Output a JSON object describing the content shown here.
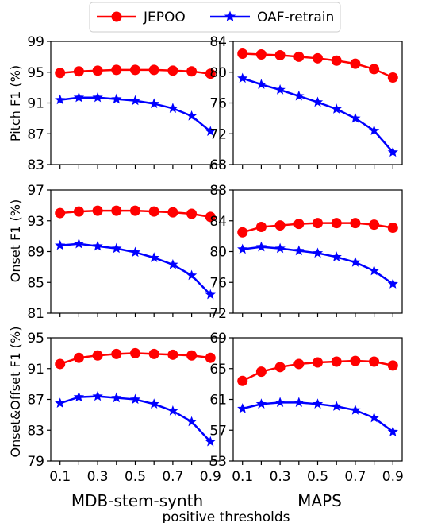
{
  "legend": {
    "items": [
      {
        "label": "JEPOO",
        "color": "#ff0000",
        "marker": "circle"
      },
      {
        "label": "OAF-retrain",
        "color": "#0000ff",
        "marker": "star"
      }
    ]
  },
  "column_titles": [
    "MDB-stem-synth",
    "MAPS"
  ],
  "row_labels": [
    "Pitch F1 (%)",
    "Onset F1 (%)",
    "Onset&Offset F1 (%)"
  ],
  "x_axis_label": "positive thresholds",
  "colors": {
    "jepoo": "#ff0000",
    "oaf": "#0000ff"
  },
  "chart_data": [
    {
      "type": "line",
      "row": 0,
      "col": 0,
      "x": [
        0.1,
        0.2,
        0.3,
        0.4,
        0.5,
        0.6,
        0.7,
        0.8,
        0.9
      ],
      "xticks": [
        "0.1",
        "0.3",
        "0.5",
        "0.7",
        "0.9"
      ],
      "ylim": [
        83,
        99
      ],
      "yticks": [
        83,
        87,
        91,
        95,
        99
      ],
      "ylabel": "Pitch F1 (%)",
      "xlabel": "",
      "series": [
        {
          "name": "JEPOO",
          "values": [
            94.9,
            95.1,
            95.2,
            95.3,
            95.3,
            95.3,
            95.2,
            95.1,
            94.8
          ]
        },
        {
          "name": "OAF-retrain",
          "values": [
            91.4,
            91.7,
            91.7,
            91.5,
            91.3,
            90.9,
            90.3,
            89.3,
            87.3
          ]
        }
      ]
    },
    {
      "type": "line",
      "row": 0,
      "col": 1,
      "x": [
        0.1,
        0.2,
        0.3,
        0.4,
        0.5,
        0.6,
        0.7,
        0.8,
        0.9
      ],
      "xticks": [
        "0.1",
        "0.3",
        "0.5",
        "0.7",
        "0.9"
      ],
      "ylim": [
        68,
        84
      ],
      "yticks": [
        68,
        72,
        76,
        80,
        84
      ],
      "ylabel": "",
      "xlabel": "",
      "series": [
        {
          "name": "JEPOO",
          "values": [
            82.4,
            82.3,
            82.2,
            82.0,
            81.8,
            81.5,
            81.1,
            80.4,
            79.3
          ]
        },
        {
          "name": "OAF-retrain",
          "values": [
            79.2,
            78.4,
            77.7,
            76.9,
            76.1,
            75.2,
            74.0,
            72.4,
            69.6
          ]
        }
      ]
    },
    {
      "type": "line",
      "row": 1,
      "col": 0,
      "x": [
        0.1,
        0.2,
        0.3,
        0.4,
        0.5,
        0.6,
        0.7,
        0.8,
        0.9
      ],
      "xticks": [
        "0.1",
        "0.3",
        "0.5",
        "0.7",
        "0.9"
      ],
      "ylim": [
        81,
        97
      ],
      "yticks": [
        81,
        85,
        89,
        93,
        97
      ],
      "ylabel": "Onset F1 (%)",
      "xlabel": "",
      "series": [
        {
          "name": "JEPOO",
          "values": [
            94.0,
            94.2,
            94.3,
            94.3,
            94.3,
            94.2,
            94.1,
            93.9,
            93.5
          ]
        },
        {
          "name": "OAF-retrain",
          "values": [
            89.8,
            90.0,
            89.7,
            89.4,
            88.9,
            88.2,
            87.3,
            85.9,
            83.4
          ]
        }
      ]
    },
    {
      "type": "line",
      "row": 1,
      "col": 1,
      "x": [
        0.1,
        0.2,
        0.3,
        0.4,
        0.5,
        0.6,
        0.7,
        0.8,
        0.9
      ],
      "xticks": [
        "0.1",
        "0.3",
        "0.5",
        "0.7",
        "0.9"
      ],
      "ylim": [
        72,
        88
      ],
      "yticks": [
        72,
        76,
        80,
        84,
        88
      ],
      "ylabel": "",
      "xlabel": "",
      "series": [
        {
          "name": "JEPOO",
          "values": [
            82.5,
            83.2,
            83.4,
            83.6,
            83.7,
            83.7,
            83.7,
            83.5,
            83.1
          ]
        },
        {
          "name": "OAF-retrain",
          "values": [
            80.3,
            80.6,
            80.4,
            80.1,
            79.8,
            79.3,
            78.6,
            77.5,
            75.8
          ]
        }
      ]
    },
    {
      "type": "line",
      "row": 2,
      "col": 0,
      "x": [
        0.1,
        0.2,
        0.3,
        0.4,
        0.5,
        0.6,
        0.7,
        0.8,
        0.9
      ],
      "xticks": [
        "0.1",
        "0.3",
        "0.5",
        "0.7",
        "0.9"
      ],
      "ylim": [
        79,
        95
      ],
      "yticks": [
        79,
        83,
        87,
        91,
        95
      ],
      "ylabel": "Onset&Offset F1 (%)",
      "xlabel": "MDB-stem-synth",
      "series": [
        {
          "name": "JEPOO",
          "values": [
            91.6,
            92.4,
            92.7,
            92.9,
            93.0,
            92.9,
            92.8,
            92.7,
            92.4
          ]
        },
        {
          "name": "OAF-retrain",
          "values": [
            86.5,
            87.3,
            87.4,
            87.2,
            87.0,
            86.4,
            85.5,
            84.1,
            81.5
          ]
        }
      ]
    },
    {
      "type": "line",
      "row": 2,
      "col": 1,
      "x": [
        0.1,
        0.2,
        0.3,
        0.4,
        0.5,
        0.6,
        0.7,
        0.8,
        0.9
      ],
      "xticks": [
        "0.1",
        "0.3",
        "0.5",
        "0.7",
        "0.9"
      ],
      "ylim": [
        53,
        69
      ],
      "yticks": [
        53,
        57,
        61,
        65,
        69
      ],
      "ylabel": "",
      "xlabel": "MAPS",
      "series": [
        {
          "name": "JEPOO",
          "values": [
            63.4,
            64.6,
            65.2,
            65.6,
            65.8,
            65.9,
            66.0,
            65.9,
            65.4
          ]
        },
        {
          "name": "OAF-retrain",
          "values": [
            59.8,
            60.4,
            60.6,
            60.6,
            60.4,
            60.1,
            59.6,
            58.6,
            56.8
          ]
        }
      ]
    }
  ]
}
